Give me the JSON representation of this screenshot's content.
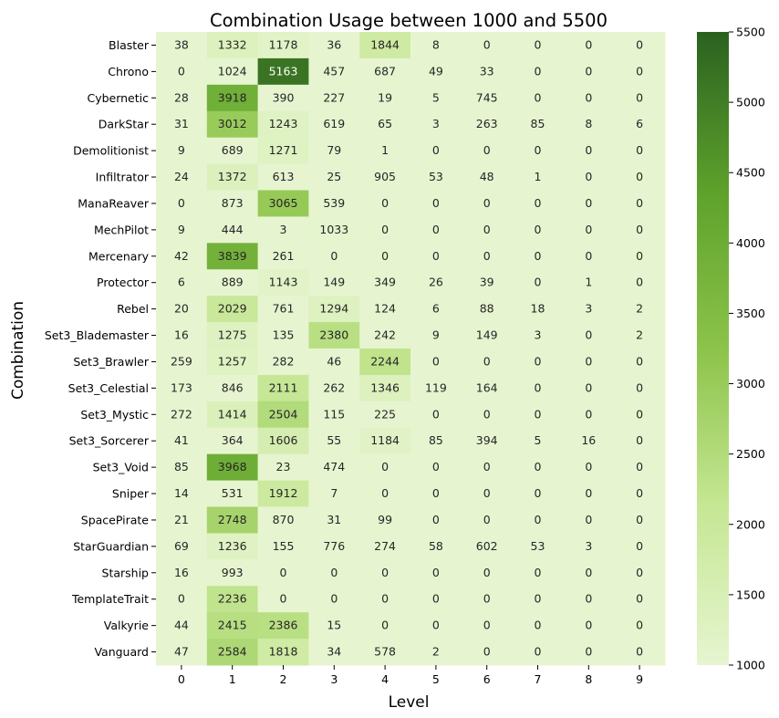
{
  "chart_data": {
    "type": "heatmap",
    "title": "Combination Usage between 1000 and 5500",
    "xlabel": "Level",
    "ylabel": "Combination",
    "x_categories": [
      "0",
      "1",
      "2",
      "3",
      "4",
      "5",
      "6",
      "7",
      "8",
      "9"
    ],
    "y_categories": [
      "Blaster",
      "Chrono",
      "Cybernetic",
      "DarkStar",
      "Demolitionist",
      "Infiltrator",
      "ManaReaver",
      "MechPilot",
      "Mercenary",
      "Protector",
      "Rebel",
      "Set3_Blademaster",
      "Set3_Brawler",
      "Set3_Celestial",
      "Set3_Mystic",
      "Set3_Sorcerer",
      "Set3_Void",
      "Sniper",
      "SpacePirate",
      "StarGuardian",
      "Starship",
      "TemplateTrait",
      "Valkyrie",
      "Vanguard"
    ],
    "values": [
      [
        38,
        1332,
        1178,
        36,
        1844,
        8,
        0,
        0,
        0,
        0
      ],
      [
        0,
        1024,
        5163,
        457,
        687,
        49,
        33,
        0,
        0,
        0
      ],
      [
        28,
        3918,
        390,
        227,
        19,
        5,
        745,
        0,
        0,
        0
      ],
      [
        31,
        3012,
        1243,
        619,
        65,
        3,
        263,
        85,
        8,
        6
      ],
      [
        9,
        689,
        1271,
        79,
        1,
        0,
        0,
        0,
        0,
        0
      ],
      [
        24,
        1372,
        613,
        25,
        905,
        53,
        48,
        1,
        0,
        0
      ],
      [
        0,
        873,
        3065,
        539,
        0,
        0,
        0,
        0,
        0,
        0
      ],
      [
        9,
        444,
        3,
        1033,
        0,
        0,
        0,
        0,
        0,
        0
      ],
      [
        42,
        3839,
        261,
        0,
        0,
        0,
        0,
        0,
        0,
        0
      ],
      [
        6,
        889,
        1143,
        149,
        349,
        26,
        39,
        0,
        1,
        0
      ],
      [
        20,
        2029,
        761,
        1294,
        124,
        6,
        88,
        18,
        3,
        2
      ],
      [
        16,
        1275,
        135,
        2380,
        242,
        9,
        149,
        3,
        0,
        2
      ],
      [
        259,
        1257,
        282,
        46,
        2244,
        0,
        0,
        0,
        0,
        0
      ],
      [
        173,
        846,
        2111,
        262,
        1346,
        119,
        164,
        0,
        0,
        0
      ],
      [
        272,
        1414,
        2504,
        115,
        225,
        0,
        0,
        0,
        0,
        0
      ],
      [
        41,
        364,
        1606,
        55,
        1184,
        85,
        394,
        5,
        16,
        0
      ],
      [
        85,
        3968,
        23,
        474,
        0,
        0,
        0,
        0,
        0,
        0
      ],
      [
        14,
        531,
        1912,
        7,
        0,
        0,
        0,
        0,
        0,
        0
      ],
      [
        21,
        2748,
        870,
        31,
        99,
        0,
        0,
        0,
        0,
        0
      ],
      [
        69,
        1236,
        155,
        776,
        274,
        58,
        602,
        53,
        3,
        0
      ],
      [
        16,
        993,
        0,
        0,
        0,
        0,
        0,
        0,
        0,
        0
      ],
      [
        0,
        2236,
        0,
        0,
        0,
        0,
        0,
        0,
        0,
        0
      ],
      [
        44,
        2415,
        2386,
        15,
        0,
        0,
        0,
        0,
        0,
        0
      ],
      [
        47,
        2584,
        1818,
        34,
        578,
        2,
        0,
        0,
        0,
        0
      ]
    ],
    "vmin": 1000,
    "vmax": 5500,
    "colorbar_ticks": [
      1000,
      1500,
      2000,
      2500,
      3000,
      3500,
      4000,
      4500,
      5000,
      5500
    ],
    "colormap": [
      "#e6f5d0",
      "#c6e794",
      "#8cc34a",
      "#5da12b",
      "#2b6120"
    ]
  }
}
